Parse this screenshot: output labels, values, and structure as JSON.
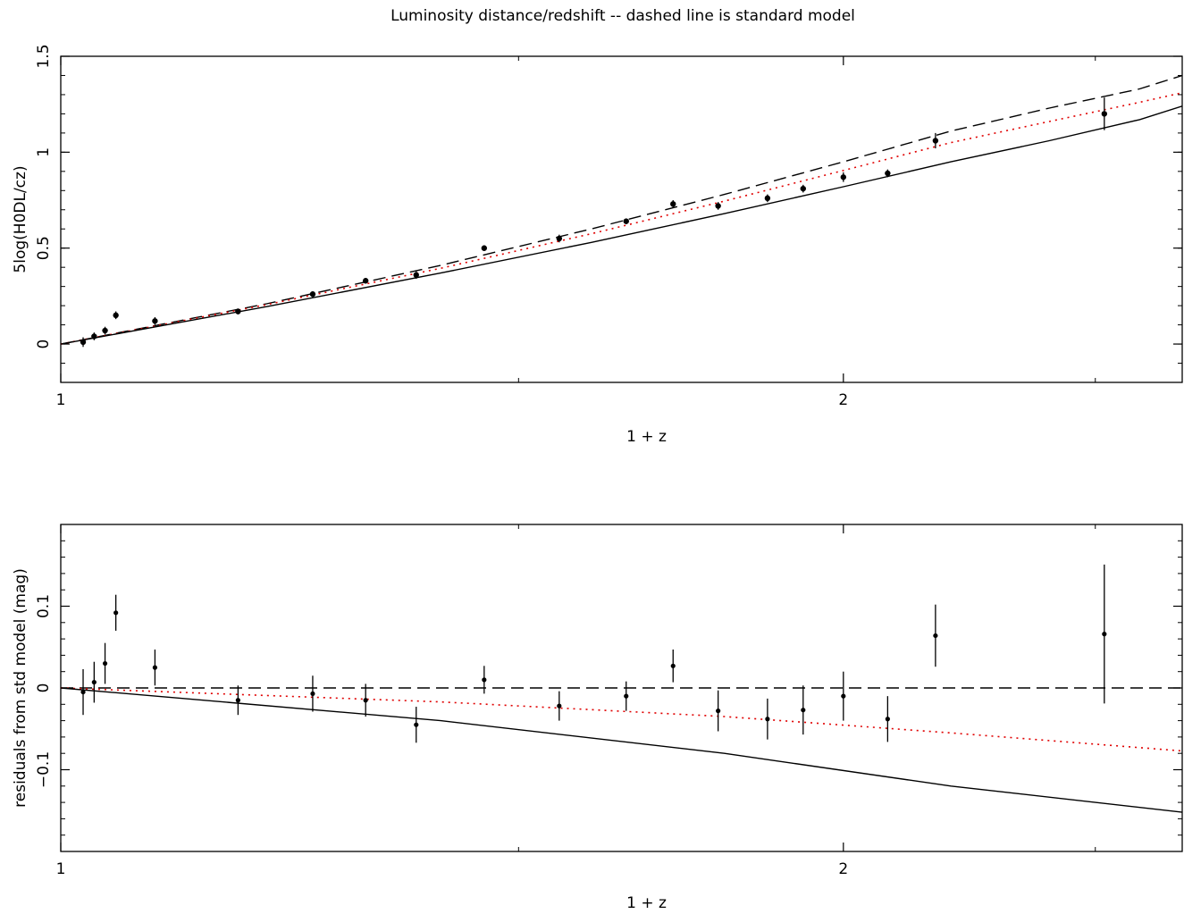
{
  "title": "Luminosity distance/redshift -- dashed line is standard model",
  "chart_data": [
    {
      "type": "scatter",
      "panel": "top",
      "xlabel": "1 + z",
      "ylabel": "5log(H0DL/cz)",
      "xlim": [
        1.0,
        2.7
      ],
      "ylim": [
        -0.2,
        1.5
      ],
      "x_scale": "log",
      "x_ticks": [
        1,
        2
      ],
      "y_ticks": [
        0,
        0.5,
        1,
        1.5
      ],
      "y_tick_labels": [
        "0",
        "0.5",
        "1",
        "1.5"
      ],
      "points": [
        {
          "x": 1.02,
          "y": 0.01,
          "err": 0.025
        },
        {
          "x": 1.03,
          "y": 0.04,
          "err": 0.02
        },
        {
          "x": 1.04,
          "y": 0.07,
          "err": 0.02
        },
        {
          "x": 1.05,
          "y": 0.15,
          "err": 0.02
        },
        {
          "x": 1.087,
          "y": 0.12,
          "err": 0.02
        },
        {
          "x": 1.17,
          "y": 0.17,
          "err": 0.015
        },
        {
          "x": 1.25,
          "y": 0.26,
          "err": 0.015
        },
        {
          "x": 1.31,
          "y": 0.33,
          "err": 0.015
        },
        {
          "x": 1.37,
          "y": 0.36,
          "err": 0.02
        },
        {
          "x": 1.455,
          "y": 0.5,
          "err": 0.015
        },
        {
          "x": 1.555,
          "y": 0.55,
          "err": 0.02
        },
        {
          "x": 1.65,
          "y": 0.64,
          "err": 0.015
        },
        {
          "x": 1.72,
          "y": 0.73,
          "err": 0.02
        },
        {
          "x": 1.79,
          "y": 0.72,
          "err": 0.02
        },
        {
          "x": 1.87,
          "y": 0.76,
          "err": 0.02
        },
        {
          "x": 1.93,
          "y": 0.81,
          "err": 0.02
        },
        {
          "x": 2.0,
          "y": 0.87,
          "err": 0.025
        },
        {
          "x": 2.08,
          "y": 0.89,
          "err": 0.02
        },
        {
          "x": 2.17,
          "y": 1.06,
          "err": 0.04
        },
        {
          "x": 2.52,
          "y": 1.2,
          "err": 0.085
        }
      ],
      "series": [
        {
          "style": "dashed",
          "color": "#000000",
          "curve": [
            [
              1.0,
              0.0
            ],
            [
              1.2,
              0.21
            ],
            [
              1.4,
              0.41
            ],
            [
              1.6,
              0.6
            ],
            [
              1.8,
              0.78
            ],
            [
              2.0,
              0.95
            ],
            [
              2.2,
              1.11
            ],
            [
              2.4,
              1.23
            ],
            [
              2.6,
              1.33
            ],
            [
              2.7,
              1.4
            ]
          ]
        },
        {
          "style": "dotted",
          "color": "#e00000",
          "curve": [
            [
              1.0,
              0.0
            ],
            [
              1.2,
              0.205
            ],
            [
              1.4,
              0.395
            ],
            [
              1.6,
              0.575
            ],
            [
              1.8,
              0.745
            ],
            [
              2.0,
              0.905
            ],
            [
              2.2,
              1.05
            ],
            [
              2.4,
              1.16
            ],
            [
              2.6,
              1.26
            ],
            [
              2.7,
              1.31
            ]
          ]
        },
        {
          "style": "solid",
          "color": "#000000",
          "curve": [
            [
              1.0,
              0.0
            ],
            [
              1.2,
              0.195
            ],
            [
              1.4,
              0.37
            ],
            [
              1.6,
              0.53
            ],
            [
              1.8,
              0.68
            ],
            [
              2.0,
              0.82
            ],
            [
              2.2,
              0.95
            ],
            [
              2.4,
              1.06
            ],
            [
              2.6,
              1.17
            ],
            [
              2.7,
              1.24
            ]
          ]
        }
      ]
    },
    {
      "type": "scatter",
      "panel": "bottom",
      "xlabel": "1 + z",
      "ylabel": "residuals from std model (mag)",
      "xlim": [
        1.0,
        2.7
      ],
      "ylim": [
        -0.2,
        0.2
      ],
      "x_scale": "log",
      "x_ticks": [
        1,
        2
      ],
      "y_ticks": [
        -0.1,
        0,
        0.1
      ],
      "y_tick_labels": [
        "−0.1",
        "0",
        "0.1"
      ],
      "points": [
        {
          "x": 1.02,
          "y": -0.005,
          "err": 0.028
        },
        {
          "x": 1.03,
          "y": 0.007,
          "err": 0.025
        },
        {
          "x": 1.04,
          "y": 0.03,
          "err": 0.025
        },
        {
          "x": 1.05,
          "y": 0.092,
          "err": 0.022
        },
        {
          "x": 1.087,
          "y": 0.025,
          "err": 0.022
        },
        {
          "x": 1.17,
          "y": -0.015,
          "err": 0.018
        },
        {
          "x": 1.25,
          "y": -0.007,
          "err": 0.022
        },
        {
          "x": 1.31,
          "y": -0.015,
          "err": 0.02
        },
        {
          "x": 1.37,
          "y": -0.045,
          "err": 0.022
        },
        {
          "x": 1.455,
          "y": 0.01,
          "err": 0.017
        },
        {
          "x": 1.555,
          "y": -0.022,
          "err": 0.018
        },
        {
          "x": 1.65,
          "y": -0.01,
          "err": 0.018
        },
        {
          "x": 1.72,
          "y": 0.027,
          "err": 0.02
        },
        {
          "x": 1.79,
          "y": -0.028,
          "err": 0.025
        },
        {
          "x": 1.87,
          "y": -0.038,
          "err": 0.025
        },
        {
          "x": 1.93,
          "y": -0.027,
          "err": 0.03
        },
        {
          "x": 2.0,
          "y": -0.01,
          "err": 0.03
        },
        {
          "x": 2.08,
          "y": -0.038,
          "err": 0.028
        },
        {
          "x": 2.17,
          "y": 0.064,
          "err": 0.038
        },
        {
          "x": 2.52,
          "y": 0.066,
          "err": 0.085
        }
      ],
      "series": [
        {
          "style": "dashed",
          "color": "#000000",
          "curve": [
            [
              1.0,
              0.0
            ],
            [
              2.7,
              0.0
            ]
          ]
        },
        {
          "style": "dotted",
          "color": "#e00000",
          "curve": [
            [
              1.0,
              0.0
            ],
            [
              1.4,
              -0.017
            ],
            [
              1.8,
              -0.035
            ],
            [
              2.2,
              -0.055
            ],
            [
              2.7,
              -0.077
            ]
          ]
        },
        {
          "style": "solid",
          "color": "#000000",
          "curve": [
            [
              1.0,
              0.0
            ],
            [
              1.4,
              -0.04
            ],
            [
              1.8,
              -0.08
            ],
            [
              2.2,
              -0.12
            ],
            [
              2.7,
              -0.152
            ]
          ]
        }
      ]
    }
  ]
}
